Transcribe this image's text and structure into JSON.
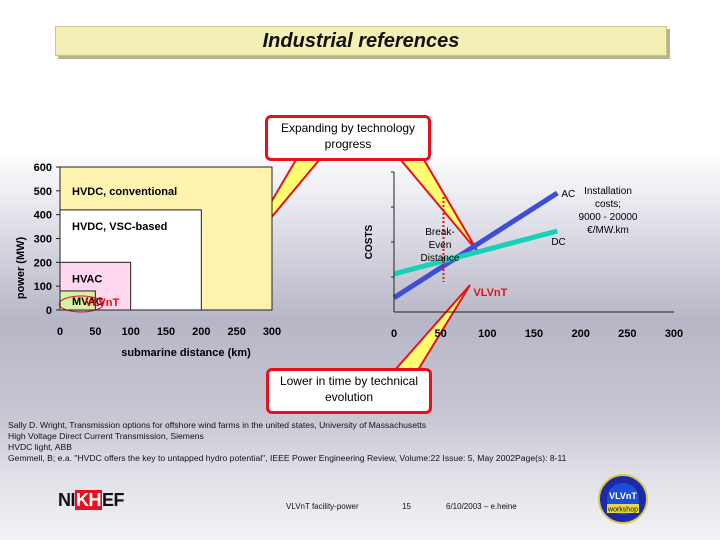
{
  "slide": {
    "title": "Industrial references",
    "callout_top": "Expanding by technology progress",
    "callout_bottom": "Lower in time by technical evolution"
  },
  "chart_data": [
    {
      "type": "bar",
      "ylabel": "power (MW)",
      "xlabel": "submarine distance (km)",
      "xlim": [
        0,
        300
      ],
      "ylim": [
        0,
        600
      ],
      "x_ticks": [
        0,
        50,
        100,
        150,
        200,
        250,
        300
      ],
      "y_ticks": [
        0,
        100,
        200,
        300,
        400,
        500,
        600
      ],
      "regions": [
        {
          "label": "HVDC, conventional",
          "max_distance": 300,
          "max_power": 600,
          "color": "#fff3b0"
        },
        {
          "label": "HVDC, VSC-based",
          "max_distance": 200,
          "max_power": 420,
          "color": "#ffffff"
        },
        {
          "label": "HVAC",
          "max_distance": 100,
          "max_power": 200,
          "color": "#ffd8f0"
        },
        {
          "label": "MVAC",
          "max_distance": 50,
          "max_power": 80,
          "color": "#d7f0a4"
        },
        {
          "label": "VLVnT",
          "max_distance": 0,
          "max_power": 0,
          "color": "#ff0000"
        }
      ]
    },
    {
      "type": "line",
      "ylabel": "COSTS",
      "xlim": [
        0,
        300
      ],
      "x_ticks": [
        0,
        50,
        100,
        150,
        200,
        250,
        300
      ],
      "series": [
        {
          "name": "AC",
          "color": "#3e4fd6",
          "points": [
            [
              0,
              12
            ],
            [
              175,
              100
            ]
          ]
        },
        {
          "name": "DC",
          "color": "#18d0b8",
          "points": [
            [
              0,
              32
            ],
            [
              175,
              68
            ]
          ]
        }
      ],
      "annotations": [
        "Break-Even Distance",
        "VLVnT",
        "Installation costs; 9000 - 20000 €/MW.km"
      ]
    }
  ],
  "chart_labels": {
    "break_even_1": "Break-",
    "break_even_2": "Even",
    "break_even_3": "Distance",
    "install_1": "Installation",
    "install_2": "costs;",
    "install_3": "9000 - 20000",
    "install_4": "€/MW.km"
  },
  "references": [
    "Sally D. Wright, Transmission options for offshore wind farms in the united states, University of Massachusetts",
    "High Voltage Direct Current Transmission, Siemens",
    "HVDC light, ABB",
    "Gemmell, B; e.a. \"HVDC offers the key to untapped hydro potential\", IEEE Power Engineering Review, Volume:22 Issue: 5, May 2002Page(s): 8-11"
  ],
  "footer": {
    "logo_pre": "NI",
    "logo_hl": "KH",
    "logo_post": "EF",
    "center_text": "VLVnT facility-power",
    "page_number": "15",
    "date_author": "6/10/2003 – e.heine",
    "workshop_logo_main": "VLVnT",
    "workshop_logo_sub": "workshop"
  }
}
